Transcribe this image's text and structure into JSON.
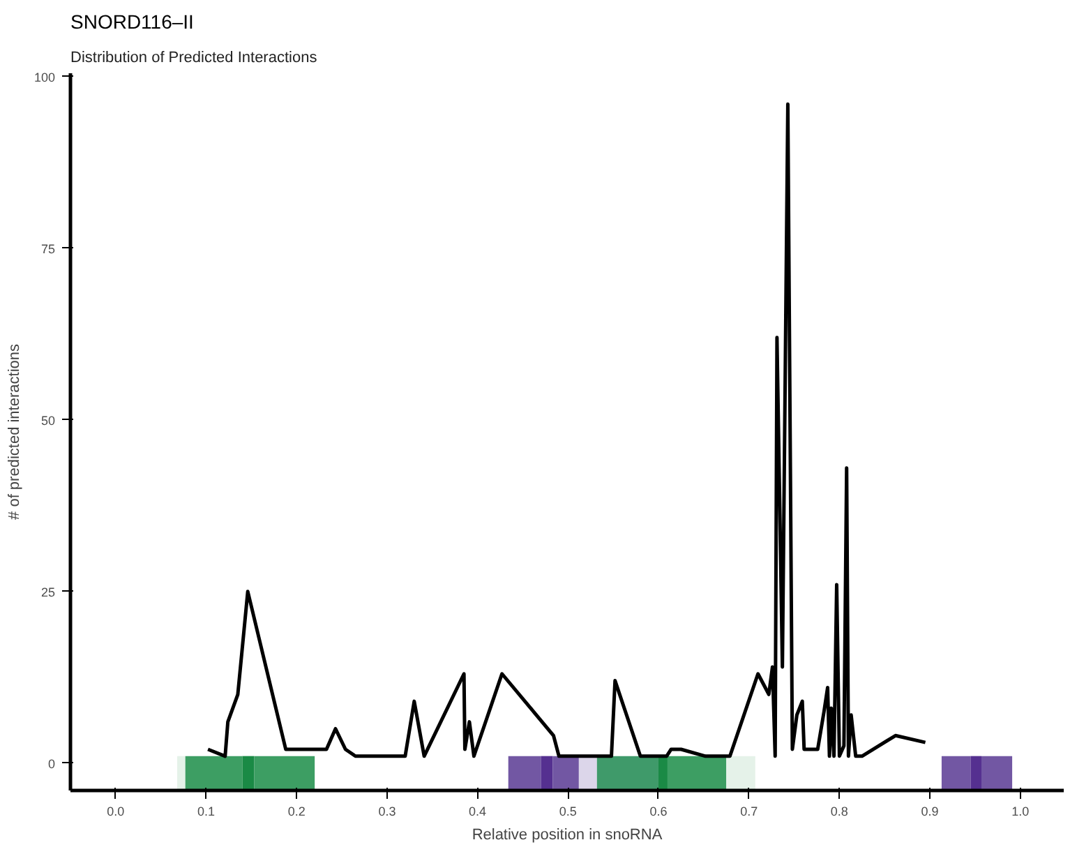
{
  "chart_data": {
    "type": "line",
    "title": "SNORD116–II",
    "subtitle": "Distribution of Predicted Interactions",
    "xlabel": "Relative position in snoRNA",
    "ylabel": "# of predicted interactions",
    "xlim": [
      -0.05,
      1.048
    ],
    "ylim": [
      -4,
      100.5
    ],
    "xticks": [
      {
        "value": 0,
        "label": "0.0"
      },
      0.1,
      0.2,
      0.3,
      0.4,
      0.5,
      0.6,
      0.7,
      0.8,
      0.9,
      {
        "value": 1,
        "label": "1.0"
      }
    ],
    "yticks": [
      0,
      25,
      50,
      75,
      100
    ],
    "grid": false,
    "marker": "none",
    "line_style": "solid",
    "series": [
      {
        "color": "#000000",
        "x": [
          0.102,
          0.121,
          0.124,
          0.135,
          0.146,
          0.188,
          0.233,
          0.243,
          0.254,
          0.265,
          0.32,
          0.33,
          0.341,
          0.385,
          0.386,
          0.391,
          0.396,
          0.427,
          0.484,
          0.49,
          0.548,
          0.552,
          0.58,
          0.609,
          0.614,
          0.625,
          0.652,
          0.679,
          0.71,
          0.722,
          0.726,
          0.729,
          0.731,
          0.737,
          0.743,
          0.748,
          0.753,
          0.759,
          0.761,
          0.765,
          0.776,
          0.783,
          0.787,
          0.789,
          0.791,
          0.794,
          0.797,
          0.8,
          0.805,
          0.808,
          0.81,
          0.813,
          0.818,
          0.825,
          0.862,
          0.895
        ],
        "values": [
          2,
          1,
          6,
          10,
          25,
          2,
          2,
          5,
          2,
          1,
          1,
          9,
          1,
          13,
          2,
          6,
          1,
          13,
          4,
          1,
          1,
          12,
          1,
          1,
          2,
          2,
          1,
          1,
          13,
          10,
          14,
          1,
          62,
          14,
          96,
          2,
          7,
          9,
          2,
          2,
          2,
          7.5,
          11,
          1,
          8,
          1,
          26,
          1,
          2.5,
          43,
          1,
          7,
          1,
          1,
          4,
          3
        ]
      }
    ],
    "bands": [
      {
        "axis": "x",
        "from": 0.068,
        "to": 0.077,
        "color": "#e5f2e9"
      },
      {
        "axis": "x",
        "from": 0.077,
        "to": 0.14,
        "color": "#3d9e63"
      },
      {
        "axis": "x",
        "from": 0.14,
        "to": 0.153,
        "color": "#1a8a45"
      },
      {
        "axis": "x",
        "from": 0.153,
        "to": 0.22,
        "color": "#3d9e63"
      },
      {
        "axis": "x",
        "from": 0.434,
        "to": 0.47,
        "color": "#7257a3"
      },
      {
        "axis": "x",
        "from": 0.47,
        "to": 0.483,
        "color": "#553090"
      },
      {
        "axis": "x",
        "from": 0.483,
        "to": 0.512,
        "color": "#7257a3"
      },
      {
        "axis": "x",
        "from": 0.512,
        "to": 0.532,
        "color": "#dcd6ea"
      },
      {
        "axis": "x",
        "from": 0.532,
        "to": 0.6,
        "color": "#3f9a6a"
      },
      {
        "axis": "x",
        "from": 0.6,
        "to": 0.61,
        "color": "#1a8a45"
      },
      {
        "axis": "x",
        "from": 0.61,
        "to": 0.675,
        "color": "#3d9e63"
      },
      {
        "axis": "x",
        "from": 0.675,
        "to": 0.707,
        "color": "#e5f2e9"
      },
      {
        "axis": "x",
        "from": 0.913,
        "to": 0.945,
        "color": "#7257a3"
      },
      {
        "axis": "x",
        "from": 0.945,
        "to": 0.957,
        "color": "#553090"
      },
      {
        "axis": "x",
        "from": 0.957,
        "to": 0.991,
        "color": "#7257a3"
      }
    ]
  }
}
